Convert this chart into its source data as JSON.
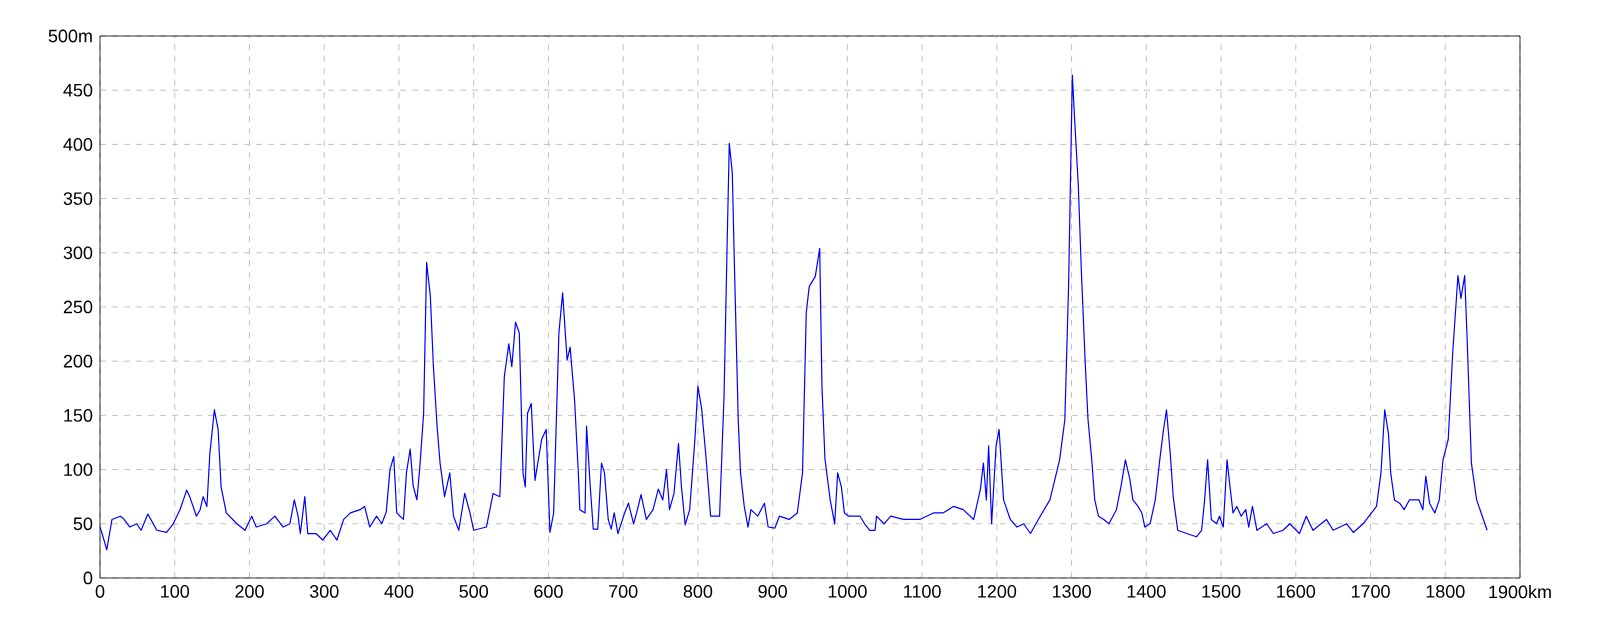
{
  "chart_data": {
    "type": "line",
    "x": [
      0,
      4,
      9,
      16,
      27,
      31,
      40,
      49,
      55,
      64,
      76,
      89,
      98,
      107,
      116,
      120,
      129,
      134,
      138,
      143,
      147,
      153,
      158,
      162,
      169,
      183,
      194,
      203,
      209,
      223,
      234,
      245,
      254,
      260,
      265,
      268,
      274,
      278,
      289,
      298,
      308,
      317,
      326,
      335,
      348,
      354,
      361,
      370,
      377,
      383,
      388,
      393,
      397,
      406,
      410,
      415,
      419,
      424,
      428,
      433,
      437,
      442,
      446,
      451,
      455,
      461,
      468,
      473,
      480,
      488,
      495,
      500,
      517,
      526,
      535,
      541,
      547,
      551,
      556,
      561,
      566,
      569,
      572,
      577,
      582,
      591,
      597,
      602,
      607,
      614,
      619,
      625,
      629,
      635,
      640,
      642,
      649,
      651,
      656,
      660,
      666,
      671,
      675,
      680,
      684,
      688,
      693,
      702,
      707,
      714,
      718,
      724,
      731,
      740,
      747,
      753,
      758,
      762,
      768,
      774,
      778,
      783,
      789,
      796,
      800,
      805,
      811,
      817,
      829,
      835,
      839,
      842,
      846,
      849,
      854,
      857,
      862,
      867,
      871,
      880,
      889,
      894,
      903,
      909,
      922,
      933,
      940,
      945,
      949,
      957,
      963,
      966,
      970,
      977,
      983,
      987,
      992,
      996,
      1002,
      1017,
      1023,
      1030,
      1037,
      1039,
      1049,
      1058,
      1075,
      1097,
      1115,
      1128,
      1142,
      1155,
      1169,
      1178,
      1182,
      1186,
      1189,
      1193,
      1199,
      1203,
      1209,
      1218,
      1227,
      1236,
      1245,
      1258,
      1271,
      1284,
      1291,
      1296,
      1301,
      1304,
      1309,
      1313,
      1318,
      1322,
      1327,
      1331,
      1336,
      1343,
      1350,
      1360,
      1366,
      1372,
      1378,
      1382,
      1389,
      1394,
      1398,
      1405,
      1412,
      1418,
      1423,
      1427,
      1432,
      1436,
      1442,
      1454,
      1467,
      1474,
      1478,
      1482,
      1487,
      1494,
      1498,
      1503,
      1508,
      1512,
      1516,
      1521,
      1527,
      1533,
      1537,
      1542,
      1548,
      1561,
      1570,
      1583,
      1592,
      1605,
      1614,
      1623,
      1641,
      1650,
      1668,
      1677,
      1690,
      1708,
      1714,
      1719,
      1724,
      1727,
      1732,
      1739,
      1745,
      1752,
      1765,
      1770,
      1774,
      1779,
      1786,
      1792,
      1797,
      1804,
      1810,
      1817,
      1821,
      1826,
      1829,
      1835,
      1842,
      1851,
      1856
    ],
    "series": [
      {
        "color": "#0000ff",
        "values": [
          47,
          38,
          26,
          54,
          57,
          55,
          47,
          50,
          44,
          59,
          44,
          42,
          50,
          63,
          81,
          75,
          57,
          63,
          75,
          66,
          115,
          155,
          137,
          84,
          60,
          50,
          44,
          57,
          47,
          50,
          57,
          47,
          50,
          72,
          57,
          41,
          75,
          41,
          41,
          35,
          44,
          35,
          54,
          60,
          63,
          66,
          47,
          57,
          50,
          61,
          100,
          112,
          60,
          54,
          97,
          119,
          85,
          72,
          103,
          152,
          291,
          260,
          196,
          140,
          106,
          75,
          97,
          57,
          44,
          78,
          60,
          44,
          47,
          78,
          75,
          186,
          216,
          195,
          236,
          226,
          97,
          84,
          152,
          161,
          90,
          128,
          137,
          42,
          60,
          226,
          263,
          201,
          213,
          164,
          97,
          63,
          60,
          140,
          84,
          45,
          45,
          106,
          97,
          54,
          45,
          60,
          41,
          60,
          69,
          50,
          60,
          77,
          54,
          63,
          82,
          72,
          100,
          63,
          78,
          124,
          84,
          49,
          63,
          128,
          177,
          156,
          110,
          57,
          57,
          168,
          304,
          401,
          374,
          284,
          145,
          97,
          66,
          47,
          63,
          57,
          69,
          47,
          46,
          57,
          54,
          60,
          97,
          245,
          269,
          278,
          304,
          177,
          110,
          72,
          50,
          97,
          84,
          60,
          57,
          57,
          50,
          44,
          44,
          57,
          50,
          57,
          54,
          54,
          60,
          60,
          66,
          63,
          54,
          82,
          106,
          72,
          122,
          50,
          122,
          137,
          72,
          54,
          47,
          50,
          41,
          57,
          72,
          109,
          146,
          270,
          464,
          424,
          362,
          285,
          202,
          146,
          109,
          72,
          57,
          54,
          50,
          63,
          84,
          109,
          91,
          72,
          66,
          60,
          47,
          50,
          72,
          109,
          137,
          155,
          115,
          75,
          44,
          41,
          38,
          44,
          72,
          109,
          54,
          50,
          57,
          47,
          109,
          84,
          60,
          66,
          57,
          63,
          47,
          66,
          44,
          50,
          41,
          44,
          50,
          41,
          57,
          44,
          54,
          44,
          50,
          42,
          50,
          66,
          97,
          155,
          133,
          97,
          72,
          69,
          63,
          72,
          72,
          63,
          94,
          69,
          60,
          72,
          109,
          128,
          208,
          279,
          258,
          279,
          226,
          106,
          72,
          54,
          44
        ]
      }
    ],
    "xlim": [
      0,
      1900
    ],
    "ylim": [
      0,
      500
    ],
    "xticks": [
      0,
      100,
      200,
      300,
      400,
      500,
      600,
      700,
      800,
      900,
      1000,
      1100,
      1200,
      1300,
      1400,
      1500,
      1600,
      1700,
      1800,
      {
        "value": 1900,
        "label": "1900km"
      }
    ],
    "yticks": [
      0,
      50,
      100,
      150,
      200,
      250,
      300,
      350,
      400,
      450,
      {
        "value": 500,
        "label": "500m"
      }
    ],
    "grid": true,
    "marker": "none",
    "line_style": "solid"
  }
}
